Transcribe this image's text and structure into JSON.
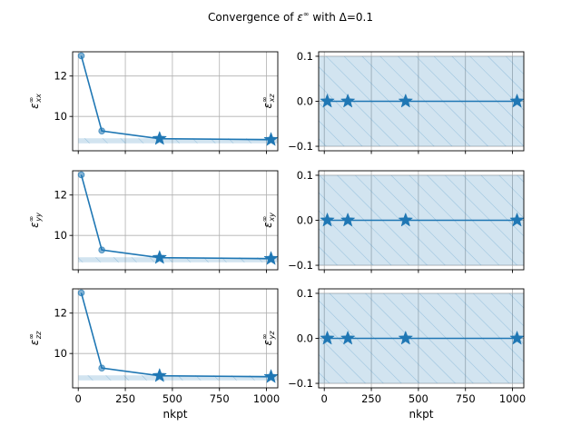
{
  "title_parts": {
    "prefix": "Convergence of ",
    "symbol": "ε",
    "sup": "∞",
    "suffix": " with Δ=0.1"
  },
  "colors": {
    "line": "#1f77b4",
    "fill": "#1f77b4",
    "grid": "#b0b0b0",
    "axis": "#000000"
  },
  "chart_data": [
    {
      "id": "xx",
      "type": "line",
      "position": "left-top",
      "ylabel": {
        "sym": "ε",
        "sup": "∞",
        "sub": "xx"
      },
      "xlim": [
        -30,
        1060
      ],
      "ylim": [
        8.3,
        13.2
      ],
      "yticks": [
        10,
        12
      ],
      "xticks": [
        0,
        250,
        500,
        750,
        1000
      ],
      "show_x_ticklabels": false,
      "x": [
        16,
        125,
        432,
        1024
      ],
      "y": [
        13.0,
        9.28,
        8.9,
        8.85
      ],
      "star_indices": [
        2,
        3
      ],
      "band": {
        "from_x": 0,
        "y_lo": 8.67,
        "y_hi": 8.92,
        "hatched": true
      }
    },
    {
      "id": "xz",
      "type": "line",
      "position": "right-top",
      "ylabel": {
        "sym": "ε",
        "sup": "∞",
        "sub": "xz"
      },
      "xlim": [
        -30,
        1060
      ],
      "ylim": [
        -0.11,
        0.11
      ],
      "yticks": [
        -0.1,
        0.0,
        0.1
      ],
      "xticks": [
        0,
        250,
        500,
        750,
        1000
      ],
      "show_x_ticklabels": false,
      "x": [
        16,
        125,
        432,
        1024
      ],
      "y": [
        0.0,
        0.0,
        0.0,
        0.0
      ],
      "star_indices": [
        0,
        1,
        2,
        3
      ],
      "band": {
        "from_x": -30,
        "y_lo": -0.1,
        "y_hi": 0.1,
        "hatched": true
      }
    },
    {
      "id": "yy",
      "type": "line",
      "position": "left-middle",
      "ylabel": {
        "sym": "ε",
        "sup": "∞",
        "sub": "yy"
      },
      "xlim": [
        -30,
        1060
      ],
      "ylim": [
        8.3,
        13.2
      ],
      "yticks": [
        10,
        12
      ],
      "xticks": [
        0,
        250,
        500,
        750,
        1000
      ],
      "show_x_ticklabels": false,
      "x": [
        16,
        125,
        432,
        1024
      ],
      "y": [
        13.0,
        9.28,
        8.9,
        8.85
      ],
      "star_indices": [
        2,
        3
      ],
      "band": {
        "from_x": 0,
        "y_lo": 8.67,
        "y_hi": 8.92,
        "hatched": true
      }
    },
    {
      "id": "xy",
      "type": "line",
      "position": "right-middle",
      "ylabel": {
        "sym": "ε",
        "sup": "∞",
        "sub": "xy"
      },
      "xlim": [
        -30,
        1060
      ],
      "ylim": [
        -0.11,
        0.11
      ],
      "yticks": [
        -0.1,
        0.0,
        0.1
      ],
      "xticks": [
        0,
        250,
        500,
        750,
        1000
      ],
      "show_x_ticklabels": false,
      "x": [
        16,
        125,
        432,
        1024
      ],
      "y": [
        0.0,
        0.0,
        0.0,
        0.0
      ],
      "star_indices": [
        0,
        1,
        2,
        3
      ],
      "band": {
        "from_x": -30,
        "y_lo": -0.1,
        "y_hi": 0.1,
        "hatched": true
      }
    },
    {
      "id": "zz",
      "type": "line",
      "position": "left-bottom",
      "ylabel": {
        "sym": "ε",
        "sup": "∞",
        "sub": "zz"
      },
      "xlabel": "nkpt",
      "xlim": [
        -30,
        1060
      ],
      "ylim": [
        8.3,
        13.2
      ],
      "yticks": [
        10,
        12
      ],
      "xticks": [
        0,
        250,
        500,
        750,
        1000
      ],
      "show_x_ticklabels": true,
      "x": [
        16,
        125,
        432,
        1024
      ],
      "y": [
        13.0,
        9.28,
        8.9,
        8.85
      ],
      "star_indices": [
        2,
        3
      ],
      "band": {
        "from_x": 0,
        "y_lo": 8.67,
        "y_hi": 8.92,
        "hatched": true
      }
    },
    {
      "id": "yz",
      "type": "line",
      "position": "right-bottom",
      "ylabel": {
        "sym": "ε",
        "sup": "∞",
        "sub": "yz"
      },
      "xlabel": "nkpt",
      "xlim": [
        -30,
        1060
      ],
      "ylim": [
        -0.11,
        0.11
      ],
      "yticks": [
        -0.1,
        0.0,
        0.1
      ],
      "xticks": [
        0,
        250,
        500,
        750,
        1000
      ],
      "show_x_ticklabels": true,
      "x": [
        16,
        125,
        432,
        1024
      ],
      "y": [
        0.0,
        0.0,
        0.0,
        0.0
      ],
      "star_indices": [
        0,
        1,
        2,
        3
      ],
      "band": {
        "from_x": -30,
        "y_lo": -0.1,
        "y_hi": 0.1,
        "hatched": true
      }
    }
  ]
}
